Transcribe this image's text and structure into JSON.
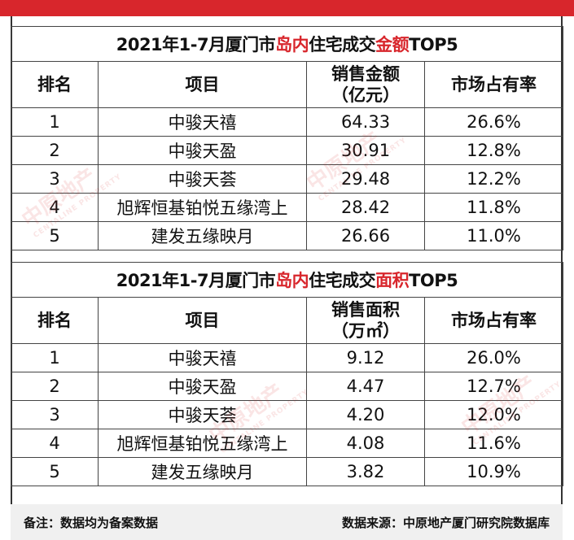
{
  "table1": {
    "title_pre": "2021年1-7月厦门市",
    "title_hl1": "岛内",
    "title_mid": "住宅成交",
    "title_hl2": "金额",
    "title_post": "TOP5",
    "headers": {
      "rank": "排名",
      "project": "项目",
      "amount_line1": "销售金额",
      "amount_line2": "（亿元）",
      "share": "市场占有率"
    },
    "rows": [
      {
        "rank": "1",
        "project": "中骏天禧",
        "value": "64.33",
        "share": "26.6%"
      },
      {
        "rank": "2",
        "project": "中骏天盈",
        "value": "30.91",
        "share": "12.8%"
      },
      {
        "rank": "3",
        "project": "中骏天荟",
        "value": "29.48",
        "share": "12.2%"
      },
      {
        "rank": "4",
        "project": "旭辉恒基铂悦五缘湾上",
        "value": "28.42",
        "share": "11.8%"
      },
      {
        "rank": "5",
        "project": "建发五缘映月",
        "value": "26.66",
        "share": "11.0%"
      }
    ]
  },
  "table2": {
    "title_pre": "2021年1-7月厦门市",
    "title_hl1": "岛内",
    "title_mid": "住宅成交",
    "title_hl2": "面积",
    "title_post": "TOP5",
    "headers": {
      "rank": "排名",
      "project": "项目",
      "amount_line1": "销售面积",
      "amount_line2": "（万㎡）",
      "share": "市场占有率"
    },
    "rows": [
      {
        "rank": "1",
        "project": "中骏天禧",
        "value": "9.12",
        "share": "26.0%"
      },
      {
        "rank": "2",
        "project": "中骏天盈",
        "value": "4.47",
        "share": "12.7%"
      },
      {
        "rank": "3",
        "project": "中骏天荟",
        "value": "4.20",
        "share": "12.0%"
      },
      {
        "rank": "4",
        "project": "旭辉恒基铂悦五缘湾上",
        "value": "4.08",
        "share": "11.6%"
      },
      {
        "rank": "5",
        "project": "建发五缘映月",
        "value": "3.82",
        "share": "10.9%"
      }
    ]
  },
  "footer": {
    "note": "备注：数据均为备案数据",
    "source": "数据来源：中原地产厦门研究院数据库"
  },
  "watermark": {
    "text": "中原地产",
    "sub": "CENTALINE PROPERTY"
  },
  "colors": {
    "accent": "#d8262c"
  }
}
